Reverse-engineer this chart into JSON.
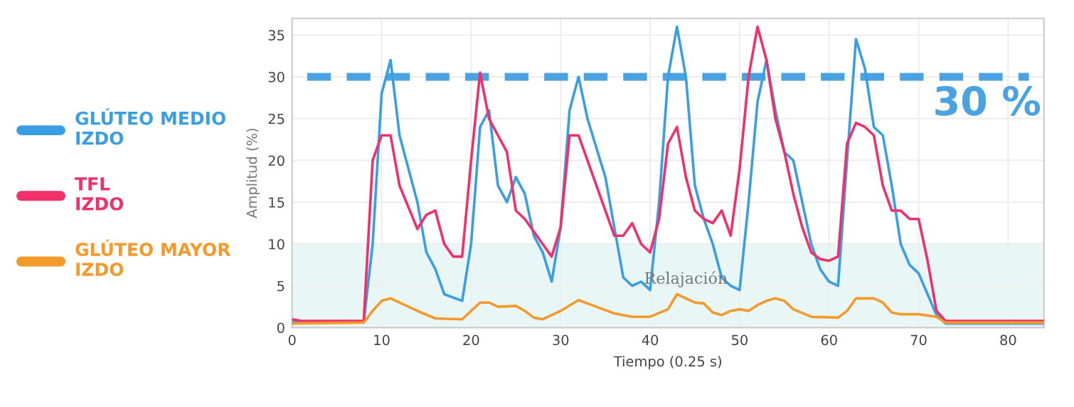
{
  "chart_data": {
    "type": "line",
    "xlabel": "Tiempo (0.25 s)",
    "ylabel": "Amplitud (%)",
    "xlim": [
      0,
      84
    ],
    "ylim": [
      0,
      37
    ],
    "xticks": [
      0,
      10,
      20,
      30,
      40,
      50,
      60,
      70,
      80
    ],
    "yticks": [
      0,
      5,
      10,
      15,
      20,
      25,
      30,
      35
    ],
    "grid": true,
    "legend": "left",
    "marker": "none",
    "line_style": "solid",
    "series": [
      {
        "name": "GLÚTEO MEDIO\nIZDO",
        "color": "#3a9ee4",
        "x": [
          0,
          8,
          9,
          10,
          11,
          12,
          14,
          15,
          16,
          17,
          19,
          20,
          21,
          22,
          23,
          24,
          25,
          26,
          27,
          28,
          29,
          30,
          31,
          32,
          33,
          35,
          36,
          37,
          38,
          39,
          40,
          41,
          42,
          43,
          44,
          45,
          46,
          47,
          48,
          49,
          50,
          51,
          52,
          53,
          54,
          55,
          56,
          57,
          58,
          59,
          60,
          61,
          62,
          63,
          64,
          65,
          66,
          67,
          68,
          69,
          70,
          71,
          72,
          73,
          84
        ],
        "values": [
          0.7,
          0.7,
          10,
          28,
          32,
          23,
          15,
          9,
          7,
          4,
          3.2,
          10,
          24,
          26,
          17,
          15,
          18,
          16,
          11,
          9,
          5.5,
          12,
          26,
          30,
          25,
          18,
          12,
          6,
          5,
          5.5,
          4.5,
          15,
          30,
          36,
          30,
          17,
          13,
          10,
          6,
          5,
          4.5,
          15,
          27,
          32,
          26,
          21,
          20,
          15,
          10,
          7,
          5.5,
          5,
          20,
          34.5,
          31,
          24,
          23,
          17,
          10,
          7.5,
          6.5,
          4,
          1.5,
          0.5,
          0.5
        ]
      },
      {
        "name": "TFL\nIZDO",
        "color": "#f0306a",
        "x": [
          0,
          1,
          8,
          9,
          10,
          11,
          12,
          14,
          15,
          16,
          17,
          18,
          19,
          20,
          21,
          22,
          23,
          24,
          25,
          26,
          28,
          29,
          30,
          31,
          32,
          33,
          35,
          36,
          37,
          38,
          39,
          40,
          41,
          42,
          43,
          44,
          45,
          46,
          47,
          48,
          49,
          50,
          51,
          52,
          53,
          54,
          55,
          56,
          57,
          58,
          59,
          60,
          61,
          62,
          63,
          64,
          65,
          66,
          67,
          68,
          69,
          70,
          71,
          72,
          73,
          84
        ],
        "values": [
          1,
          0.8,
          0.8,
          20,
          23,
          23,
          17,
          11.8,
          13.5,
          14,
          10,
          8.5,
          8.5,
          20,
          30.5,
          25,
          23,
          21,
          14,
          13,
          10,
          8.5,
          12,
          23,
          23,
          20,
          14,
          11,
          11,
          12.5,
          10,
          9,
          13,
          22,
          24,
          18,
          14,
          13,
          12.5,
          14,
          11,
          19,
          30,
          36,
          32,
          25,
          21,
          16,
          12,
          9,
          8.2,
          8,
          8.5,
          22,
          24.5,
          24,
          23,
          17,
          14,
          14,
          13,
          13,
          8,
          2,
          0.8,
          0.8
        ]
      },
      {
        "name": "GLÚTEO MAYOR\nIZDO",
        "color": "#f39a2b",
        "x": [
          0,
          8,
          9,
          10,
          11,
          12,
          14,
          16,
          19,
          20,
          21,
          22,
          23,
          25,
          26,
          27,
          28,
          30,
          32,
          34,
          36,
          38,
          40,
          42,
          43,
          44,
          45,
          46,
          47,
          48,
          49,
          50,
          51,
          52,
          53,
          54,
          55,
          56,
          58,
          61,
          62,
          63,
          65,
          66,
          67,
          68,
          70,
          72,
          73,
          84
        ],
        "values": [
          0.5,
          0.6,
          2,
          3.2,
          3.5,
          3,
          2,
          1.1,
          1,
          2,
          3,
          3,
          2.5,
          2.6,
          2,
          1.2,
          1,
          2,
          3.3,
          2.5,
          1.7,
          1.3,
          1.3,
          2.2,
          4,
          3.5,
          3,
          2.9,
          1.8,
          1.5,
          2,
          2.2,
          2,
          2.7,
          3.2,
          3.5,
          3.2,
          2.2,
          1.3,
          1.2,
          2,
          3.5,
          3.5,
          3,
          1.8,
          1.6,
          1.6,
          1.3,
          0.6,
          0.6
        ]
      }
    ],
    "ref_lines": [
      {
        "axis": "y",
        "value": 30,
        "label": "30 %",
        "color": "#4aa3e0",
        "line_style": "dashed"
      }
    ],
    "bands": [
      {
        "axis": "y",
        "from": 0,
        "to": 10,
        "label": "Relajación",
        "color": "#e8f6f6"
      }
    ]
  }
}
